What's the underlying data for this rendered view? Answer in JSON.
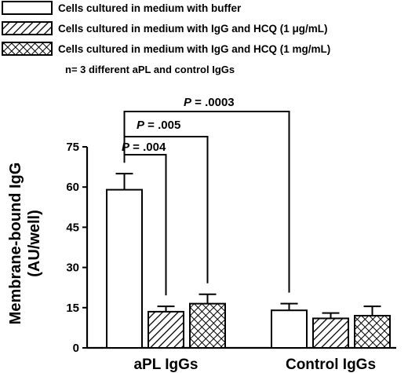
{
  "chart_data": {
    "type": "bar",
    "ylabel_line1": "Membrane-bound IgG",
    "ylabel_line2": "(AU/well)",
    "ylim": [
      0,
      75
    ],
    "yticks": [
      0,
      15,
      30,
      45,
      60,
      75
    ],
    "categories": [
      "aPL IgGs",
      "Control IgGs"
    ],
    "series": [
      {
        "name": "Cells cultured in medium with buffer",
        "pattern": "none",
        "values": [
          59,
          14
        ],
        "errors": [
          6,
          2.5
        ]
      },
      {
        "name": "Cells cultured in medium with IgG and HCQ (1 μg/mL)",
        "pattern": "diagonal",
        "values": [
          13.5,
          11
        ],
        "errors": [
          2,
          2
        ]
      },
      {
        "name": "Cells cultured in medium with IgG and HCQ (1 mg/mL)",
        "pattern": "crosshatch",
        "values": [
          16.5,
          12
        ],
        "errors": [
          3.5,
          3.5
        ]
      }
    ],
    "note": "n= 3 different aPL and control IgGs",
    "legend_position": "top-left",
    "grid": false,
    "comparisons": [
      {
        "label_prefix": "P",
        "label_value": " = .004",
        "from": "aPL IgGs / buffer",
        "to": "aPL IgGs / HCQ 1 μg/mL"
      },
      {
        "label_prefix": "P",
        "label_value": " = .005",
        "from": "aPL IgGs / buffer",
        "to": "aPL IgGs / HCQ 1 mg/mL"
      },
      {
        "label_prefix": "P",
        "label_value": " = .0003",
        "from": "aPL IgGs / buffer",
        "to": "Control IgGs / buffer"
      }
    ]
  }
}
